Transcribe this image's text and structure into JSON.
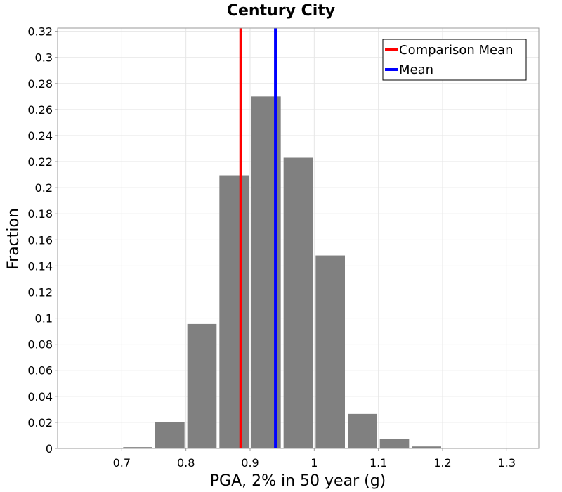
{
  "chart_data": {
    "type": "bar",
    "title": "Century City",
    "xlabel": "PGA, 2% in 50 year (g)",
    "ylabel": "Fraction",
    "xlim": [
      0.6,
      1.35
    ],
    "ylim": [
      0,
      0.3225
    ],
    "xticks": [
      "0.7",
      "0.8",
      "0.9",
      "1",
      "1.1",
      "1.2",
      "1.3"
    ],
    "yticks": [
      "0",
      "0.02",
      "0.04",
      "0.06",
      "0.08",
      "0.1",
      "0.12",
      "0.14",
      "0.16",
      "0.18",
      "0.2",
      "0.22",
      "0.24",
      "0.26",
      "0.28",
      "0.3",
      "0.32"
    ],
    "grid": true,
    "bin_width": 0.05,
    "bins": [
      0.725,
      0.775,
      0.825,
      0.875,
      0.925,
      0.975,
      1.025,
      1.075,
      1.125,
      1.175,
      1.225
    ],
    "values": [
      0.001,
      0.02,
      0.0955,
      0.2095,
      0.27,
      0.223,
      0.148,
      0.0265,
      0.0075,
      0.0015,
      0.0003
    ],
    "bar_color": "#808080",
    "lines": [
      {
        "name": "Comparison Mean",
        "x": 0.8855,
        "color": "#ff0000"
      },
      {
        "name": "Mean",
        "x": 0.9395,
        "color": "#0000ff"
      }
    ],
    "legend": {
      "position": "top-right"
    }
  }
}
